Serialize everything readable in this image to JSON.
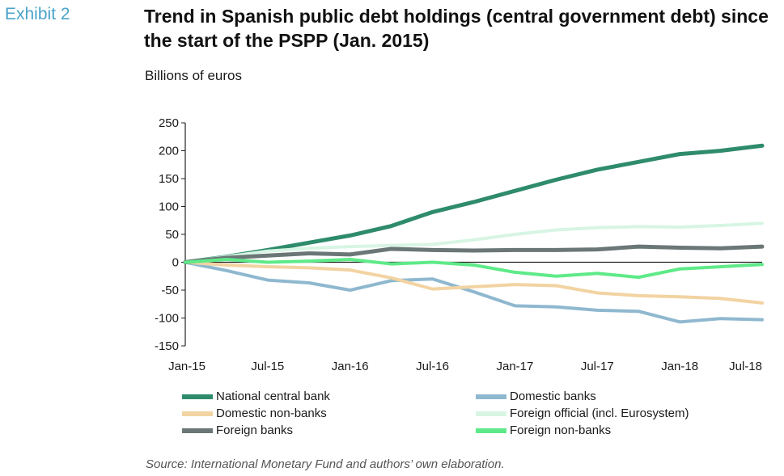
{
  "exhibit_label": "Exhibit 2",
  "source": "Source: International Monetary Fund and authors’ own elaboration.",
  "chart_data": {
    "type": "line",
    "title": "Trend in Spanish public debt holdings (central government debt) since the start of the PSPP (Jan. 2015)",
    "ylabel": "Billions of euros",
    "xlabel": "",
    "ylim": [
      -150,
      250
    ],
    "yticks": [
      250,
      200,
      150,
      100,
      50,
      0,
      -50,
      -100,
      -150
    ],
    "x": [
      "Jan-15",
      "Apr-15",
      "Jul-15",
      "Oct-15",
      "Jan-16",
      "Apr-16",
      "Jul-16",
      "Oct-16",
      "Jan-17",
      "Apr-17",
      "Jul-17",
      "Oct-17",
      "Jan-18",
      "Apr-18",
      "Jul-18"
    ],
    "xtick_labels": [
      "Jan-15",
      "Jul-15",
      "Jan-16",
      "Jul-16",
      "Jan-17",
      "Jul-17",
      "Jan-18",
      "Jul-18"
    ],
    "grid": false,
    "legend_position": "bottom",
    "series": [
      {
        "name": "National central bank",
        "color": "#2e8b6b",
        "width": 5,
        "values": [
          0,
          10,
          22,
          35,
          48,
          65,
          90,
          108,
          128,
          148,
          166,
          180,
          194,
          200,
          209
        ]
      },
      {
        "name": "Domestic banks",
        "color": "#8fb8cf",
        "width": 4,
        "values": [
          0,
          -15,
          -32,
          -37,
          -50,
          -33,
          -30,
          -53,
          -78,
          -80,
          -86,
          -88,
          -107,
          -101,
          -103
        ]
      },
      {
        "name": "Domestic non-banks",
        "color": "#f2d3a2",
        "width": 4,
        "values": [
          0,
          -5,
          -8,
          -10,
          -14,
          -28,
          -48,
          -44,
          -40,
          -42,
          -55,
          -60,
          -62,
          -65,
          -73
        ]
      },
      {
        "name": "Foreign official (incl. Eurosystem)",
        "color": "#d8f5e4",
        "width": 4,
        "values": [
          0,
          10,
          20,
          25,
          28,
          30,
          32,
          40,
          50,
          58,
          62,
          64,
          63,
          66,
          70
        ]
      },
      {
        "name": "Foreign banks",
        "color": "#6b7676",
        "width": 5,
        "values": [
          0,
          8,
          12,
          16,
          14,
          24,
          22,
          21,
          22,
          22,
          23,
          28,
          26,
          25,
          28
        ]
      },
      {
        "name": "Foreign non-banks",
        "color": "#5eea88",
        "width": 4,
        "values": [
          0,
          5,
          0,
          2,
          5,
          -3,
          0,
          -5,
          -18,
          -25,
          -20,
          -27,
          -12,
          -8,
          -4
        ]
      }
    ]
  }
}
